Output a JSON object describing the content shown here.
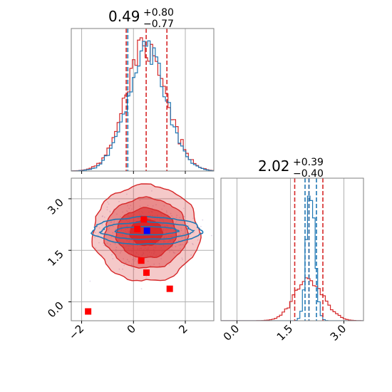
{
  "chart_data": {
    "type": "corner",
    "grid": true,
    "colors": {
      "red": "#d62728",
      "blue": "#1f77b4",
      "red_fill": "#d62728",
      "grid": "#b0b0b0",
      "red_marker": "#ff0000",
      "blue_marker": "#0000ff"
    },
    "panels": [
      {
        "id": "hist_x",
        "type": "histogram",
        "title": {
          "value": "0.49",
          "upper": "+0.80",
          "lower": "−0.77"
        },
        "xlim": [
          -2.4,
          3.1
        ],
        "xticks": [
          -2,
          0,
          2
        ],
        "quantiles": {
          "red": [
            -0.28,
            0.49,
            1.29
          ],
          "blue": [
            -0.22
          ]
        },
        "series": [
          {
            "name": "",
            "color": "red",
            "mean": 0.49,
            "sd": 0.78,
            "peak": 1.0
          },
          {
            "name": "",
            "color": "blue",
            "mean": 0.52,
            "sd": 0.75,
            "peak": 0.95
          }
        ]
      },
      {
        "id": "hist_y",
        "type": "histogram",
        "title": {
          "value": "2.02",
          "upper": "+0.39",
          "lower": "−0.40"
        },
        "xlim": [
          -0.45,
          3.55
        ],
        "xticks": [
          0.0,
          1.5,
          3.0
        ],
        "xticklabels": [
          "0.0",
          "1.5",
          "3.0"
        ],
        "quantiles": {
          "red": [
            1.62,
            2.02,
            2.41
          ],
          "blue": [
            1.91,
            2.02,
            2.23
          ]
        },
        "series": [
          {
            "name": "",
            "color": "red",
            "mean": 2.02,
            "sd": 0.4,
            "peak": 0.32
          },
          {
            "name": "",
            "color": "blue",
            "mean": 2.07,
            "sd": 0.12,
            "peak": 1.0
          }
        ]
      },
      {
        "id": "joint_xy",
        "type": "scatter_contour",
        "xlim": [
          -2.4,
          3.1
        ],
        "ylim": [
          -0.55,
          3.6
        ],
        "xticks": [
          -2,
          0,
          2
        ],
        "yticks": [
          0.0,
          1.5,
          3.0
        ],
        "yticklabels": [
          "0.0",
          "1.5",
          "3.0"
        ],
        "red_contours": [
          {
            "cx": 0.49,
            "cy": 2.02,
            "rx": 0.62,
            "ry": 0.38
          },
          {
            "cx": 0.49,
            "cy": 2.0,
            "rx": 1.15,
            "ry": 0.72
          },
          {
            "cx": 0.49,
            "cy": 2.0,
            "rx": 1.6,
            "ry": 1.02
          },
          {
            "cx": 0.49,
            "cy": 2.0,
            "rx": 2.05,
            "ry": 1.4
          }
        ],
        "blue_contours": [
          {
            "cx": 0.52,
            "cy": 2.07,
            "rx": 1.2,
            "ry": 0.12
          },
          {
            "cx": 0.52,
            "cy": 2.07,
            "rx": 1.75,
            "ry": 0.25
          },
          {
            "cx": 0.52,
            "cy": 2.07,
            "rx": 2.1,
            "ry": 0.4
          }
        ],
        "red_markers": [
          {
            "x": 0.4,
            "y": 2.4
          },
          {
            "x": 0.15,
            "y": 2.12
          },
          {
            "x": 0.3,
            "y": 1.2
          },
          {
            "x": 0.5,
            "y": 0.85
          },
          {
            "x": 1.4,
            "y": 0.38
          },
          {
            "x": -1.75,
            "y": -0.28
          }
        ],
        "blue_markers": [
          {
            "x": 0.52,
            "y": 2.07
          }
        ]
      }
    ]
  }
}
